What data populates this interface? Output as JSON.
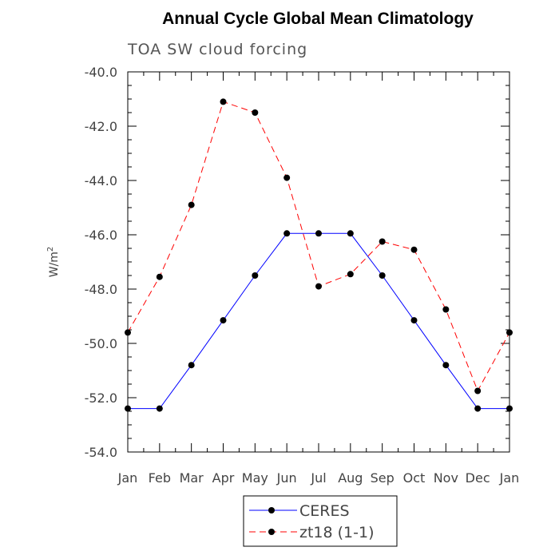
{
  "chart_data": {
    "type": "line",
    "title": "Annual Cycle Global Mean Climatology",
    "subtitle": "TOA SW cloud forcing",
    "xlabel": "",
    "ylabel_base": "W/m",
    "ylabel_sup": "2",
    "categories": [
      "Jan",
      "Feb",
      "Mar",
      "Apr",
      "May",
      "Jun",
      "Jul",
      "Aug",
      "Sep",
      "Oct",
      "Nov",
      "Dec",
      "Jan"
    ],
    "ylim": [
      -54.0,
      -40.0
    ],
    "yticks": [
      "-40.0",
      "-42.0",
      "-44.0",
      "-46.0",
      "-48.0",
      "-50.0",
      "-52.0",
      "-54.0"
    ],
    "ytick_values": [
      -40,
      -42,
      -44,
      -46,
      -48,
      -50,
      -52,
      -54
    ],
    "grid": false,
    "legend_position": "bottom-center",
    "series": [
      {
        "name": "CERES",
        "color": "#0000ff",
        "line_style": "solid",
        "values": [
          -52.4,
          -52.4,
          -50.8,
          -49.15,
          -47.5,
          -45.95,
          -45.95,
          -45.95,
          -47.5,
          -49.15,
          -50.8,
          -52.4,
          -52.4
        ]
      },
      {
        "name": "zt18 (1-1)",
        "color": "#ff0000",
        "line_style": "dashed",
        "values": [
          -49.6,
          -47.55,
          -44.9,
          -41.1,
          -41.5,
          -43.9,
          -47.9,
          -47.45,
          -46.25,
          -46.55,
          -48.75,
          -51.75,
          -49.6
        ]
      }
    ]
  }
}
